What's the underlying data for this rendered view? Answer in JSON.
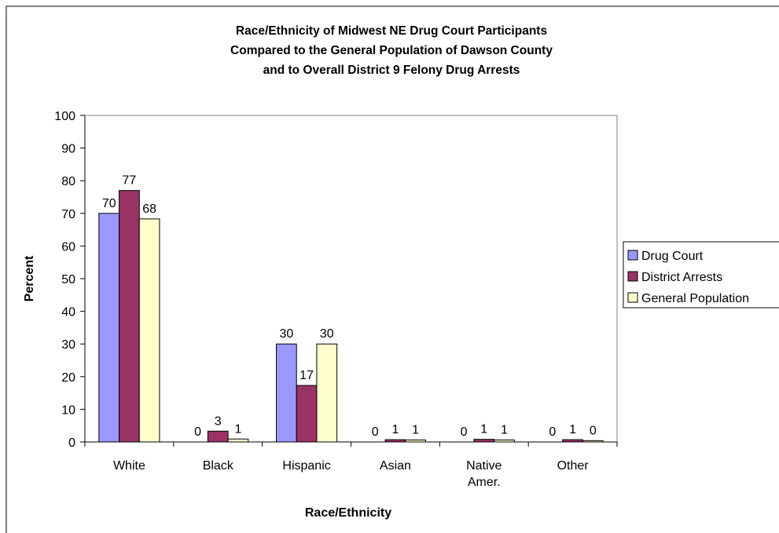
{
  "chart_data": {
    "type": "bar",
    "title": [
      "Race/Ethnicity of Midwest NE Drug Court Participants",
      "Compared to the General Population of Dawson County",
      "and to Overall District 9 Felony Drug Arrests"
    ],
    "xlabel": "Race/Ethnicity",
    "ylabel": "Percent",
    "ylim": [
      0,
      100
    ],
    "yticks": [
      0,
      10,
      20,
      30,
      40,
      50,
      60,
      70,
      80,
      90,
      100
    ],
    "categories": [
      [
        "White"
      ],
      [
        "Black"
      ],
      [
        "Hispanic"
      ],
      [
        "Asian"
      ],
      [
        "Native",
        "Amer."
      ],
      [
        "Other"
      ]
    ],
    "series": [
      {
        "name": "Drug Court",
        "color": "#9999ff",
        "values": [
          70,
          0,
          30,
          0,
          0,
          0
        ],
        "labels": [
          "70",
          "0",
          "30",
          "0",
          "0",
          "0"
        ]
      },
      {
        "name": "District Arrests",
        "color": "#993366",
        "values": [
          77,
          3.3,
          17.3,
          0.7,
          0.8,
          0.7
        ],
        "labels": [
          "77",
          "3",
          "17",
          "1",
          "1",
          "1"
        ]
      },
      {
        "name": "General Population",
        "color": "#ffffcc",
        "values": [
          68.3,
          0.9,
          30,
          0.6,
          0.6,
          0.4
        ],
        "labels": [
          "68",
          "1",
          "30",
          "1",
          "1",
          "0"
        ]
      }
    ],
    "legend": "right",
    "grid": false
  }
}
